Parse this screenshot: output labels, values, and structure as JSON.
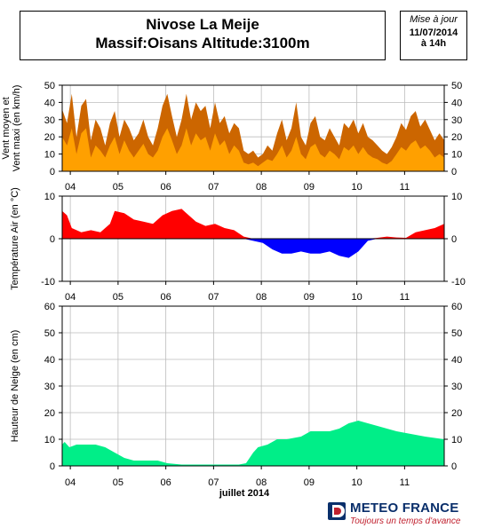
{
  "header": {
    "title_line1": "Nivose La Meije",
    "title_line2": "Massif:Oisans Altitude:3100m"
  },
  "update": {
    "label": "Mise à jour",
    "date": "11/07/2014",
    "time": "à 14h"
  },
  "brand": {
    "name": "METEO FRANCE",
    "slogan": "Toujours un temps d'avance"
  },
  "colors": {
    "wind_max": "#cc6600",
    "wind_mean": "#ffa000",
    "temp_positive": "#ff0000",
    "temp_negative": "#0000ff",
    "snow": "#00ee88",
    "brand_blue": "#0a2f6b",
    "brand_red": "#c0202e"
  },
  "chart_data": [
    {
      "type": "area",
      "name": "wind",
      "ylabel": [
        "Vent moyen et",
        "Vent maxi (en km/h)"
      ],
      "ylim": [
        0,
        50
      ],
      "yticks": [
        0,
        10,
        20,
        30,
        40,
        50
      ],
      "grid": true,
      "x_unit": "days since 2014-07-03 14h",
      "x_range": [
        0,
        8
      ],
      "day_ticks": [
        {
          "label": "04",
          "x": 0.17
        },
        {
          "label": "05",
          "x": 1.17
        },
        {
          "label": "06",
          "x": 2.17
        },
        {
          "label": "07",
          "x": 3.17
        },
        {
          "label": "08",
          "x": 4.17
        },
        {
          "label": "09",
          "x": 5.17
        },
        {
          "label": "10",
          "x": 6.17
        },
        {
          "label": "11",
          "x": 7.17
        }
      ],
      "series": [
        {
          "name": "Vent maxi",
          "x": [
            0,
            0.1,
            0.2,
            0.3,
            0.4,
            0.5,
            0.6,
            0.7,
            0.8,
            0.9,
            1.0,
            1.1,
            1.2,
            1.3,
            1.4,
            1.5,
            1.6,
            1.7,
            1.8,
            1.9,
            2.0,
            2.1,
            2.2,
            2.3,
            2.4,
            2.5,
            2.6,
            2.7,
            2.8,
            2.9,
            3.0,
            3.1,
            3.2,
            3.3,
            3.4,
            3.5,
            3.6,
            3.7,
            3.8,
            3.9,
            4.0,
            4.1,
            4.2,
            4.3,
            4.4,
            4.5,
            4.6,
            4.7,
            4.8,
            4.9,
            5.0,
            5.1,
            5.2,
            5.3,
            5.4,
            5.5,
            5.6,
            5.7,
            5.8,
            5.9,
            6.0,
            6.1,
            6.2,
            6.3,
            6.4,
            6.5,
            6.6,
            6.7,
            6.8,
            6.9,
            7.0,
            7.1,
            7.2,
            7.3,
            7.4,
            7.5,
            7.6,
            7.7,
            7.8,
            7.9,
            8.0
          ],
          "values": [
            36,
            28,
            45,
            20,
            38,
            42,
            18,
            30,
            25,
            15,
            28,
            35,
            20,
            30,
            25,
            18,
            22,
            30,
            20,
            15,
            25,
            38,
            45,
            32,
            20,
            30,
            45,
            30,
            40,
            35,
            38,
            25,
            40,
            28,
            32,
            22,
            28,
            25,
            12,
            10,
            12,
            8,
            10,
            15,
            12,
            22,
            30,
            18,
            25,
            40,
            20,
            15,
            28,
            32,
            20,
            18,
            25,
            20,
            15,
            28,
            25,
            30,
            22,
            28,
            20,
            18,
            15,
            12,
            10,
            14,
            20,
            28,
            24,
            32,
            35,
            26,
            30,
            24,
            18,
            22,
            18
          ]
        },
        {
          "name": "Vent moyen",
          "x": [
            0,
            0.1,
            0.2,
            0.3,
            0.4,
            0.5,
            0.6,
            0.7,
            0.8,
            0.9,
            1.0,
            1.1,
            1.2,
            1.3,
            1.4,
            1.5,
            1.6,
            1.7,
            1.8,
            1.9,
            2.0,
            2.1,
            2.2,
            2.3,
            2.4,
            2.5,
            2.6,
            2.7,
            2.8,
            2.9,
            3.0,
            3.1,
            3.2,
            3.3,
            3.4,
            3.5,
            3.6,
            3.7,
            3.8,
            3.9,
            4.0,
            4.1,
            4.2,
            4.3,
            4.4,
            4.5,
            4.6,
            4.7,
            4.8,
            4.9,
            5.0,
            5.1,
            5.2,
            5.3,
            5.4,
            5.5,
            5.6,
            5.7,
            5.8,
            5.9,
            6.0,
            6.1,
            6.2,
            6.3,
            6.4,
            6.5,
            6.6,
            6.7,
            6.8,
            6.9,
            7.0,
            7.1,
            7.2,
            7.3,
            7.4,
            7.5,
            7.6,
            7.7,
            7.8,
            7.9,
            8.0
          ],
          "values": [
            20,
            15,
            25,
            10,
            22,
            25,
            8,
            15,
            12,
            8,
            15,
            20,
            10,
            18,
            12,
            8,
            12,
            16,
            10,
            8,
            12,
            20,
            25,
            18,
            10,
            15,
            25,
            15,
            22,
            18,
            20,
            12,
            22,
            15,
            18,
            10,
            15,
            12,
            5,
            4,
            5,
            3,
            5,
            7,
            6,
            10,
            15,
            8,
            12,
            20,
            10,
            7,
            14,
            16,
            10,
            8,
            12,
            10,
            7,
            14,
            12,
            15,
            10,
            14,
            10,
            8,
            7,
            5,
            4,
            6,
            10,
            14,
            12,
            16,
            18,
            13,
            15,
            12,
            8,
            10,
            8
          ]
        }
      ]
    },
    {
      "type": "area",
      "name": "temperature",
      "ylabel": [
        "Température Air (en °C)"
      ],
      "ylim": [
        -10,
        10
      ],
      "yticks": [
        -10,
        0,
        10
      ],
      "grid": true,
      "x_unit": "days since 2014-07-03 14h",
      "x_range": [
        0,
        8
      ],
      "day_ticks": [
        {
          "label": "04",
          "x": 0.17
        },
        {
          "label": "05",
          "x": 1.17
        },
        {
          "label": "06",
          "x": 2.17
        },
        {
          "label": "07",
          "x": 3.17
        },
        {
          "label": "08",
          "x": 4.17
        },
        {
          "label": "09",
          "x": 5.17
        },
        {
          "label": "10",
          "x": 6.17
        },
        {
          "label": "11",
          "x": 7.17
        }
      ],
      "series": [
        {
          "name": "Température Air",
          "x": [
            0,
            0.1,
            0.2,
            0.4,
            0.6,
            0.8,
            1.0,
            1.1,
            1.3,
            1.5,
            1.7,
            1.9,
            2.1,
            2.3,
            2.5,
            2.6,
            2.8,
            3.0,
            3.2,
            3.4,
            3.6,
            3.8,
            4.0,
            4.2,
            4.4,
            4.6,
            4.8,
            5.0,
            5.2,
            5.4,
            5.6,
            5.8,
            6.0,
            6.2,
            6.4,
            6.6,
            6.8,
            7.0,
            7.2,
            7.4,
            7.6,
            7.8,
            8.0
          ],
          "values": [
            6.5,
            5.5,
            2.5,
            1.5,
            2.0,
            1.5,
            3.5,
            6.5,
            6.0,
            4.5,
            4.0,
            3.5,
            5.5,
            6.5,
            7.0,
            6.0,
            4.0,
            3.0,
            3.5,
            2.5,
            2.0,
            0.5,
            -0.5,
            -1.0,
            -2.5,
            -3.5,
            -3.5,
            -3.0,
            -3.5,
            -3.5,
            -3.0,
            -4.0,
            -4.5,
            -3.0,
            -0.5,
            0.2,
            0.5,
            0.3,
            0.2,
            1.5,
            2.0,
            2.5,
            3.5
          ]
        }
      ]
    },
    {
      "type": "area",
      "name": "snow",
      "ylabel": [
        "Hauteur de Neige (en cm)"
      ],
      "xlabel": "juillet 2014",
      "ylim": [
        0,
        60
      ],
      "yticks": [
        0,
        10,
        20,
        30,
        40,
        50,
        60
      ],
      "grid": true,
      "x_unit": "days since 2014-07-03 14h",
      "x_range": [
        0,
        8
      ],
      "day_ticks": [
        {
          "label": "04",
          "x": 0.17
        },
        {
          "label": "05",
          "x": 1.17
        },
        {
          "label": "06",
          "x": 2.17
        },
        {
          "label": "07",
          "x": 3.17
        },
        {
          "label": "08",
          "x": 4.17
        },
        {
          "label": "09",
          "x": 5.17
        },
        {
          "label": "10",
          "x": 6.17
        },
        {
          "label": "11",
          "x": 7.17
        }
      ],
      "series": [
        {
          "name": "Hauteur de Neige",
          "x": [
            0,
            0.05,
            0.15,
            0.3,
            0.7,
            0.9,
            1.1,
            1.3,
            1.5,
            2.0,
            2.2,
            2.5,
            3.0,
            3.5,
            3.7,
            3.85,
            4.0,
            4.1,
            4.3,
            4.5,
            4.7,
            5.0,
            5.2,
            5.4,
            5.6,
            5.8,
            6.0,
            6.2,
            6.4,
            6.6,
            6.8,
            7.0,
            7.3,
            7.6,
            8.0
          ],
          "values": [
            8,
            9,
            7,
            8,
            8,
            7,
            5,
            3,
            2,
            2,
            1,
            0.5,
            0.5,
            0.5,
            0.5,
            1,
            5,
            7,
            8,
            10,
            10,
            11,
            13,
            13,
            13,
            14,
            16,
            17,
            16,
            15,
            14,
            13,
            12,
            11,
            10
          ]
        }
      ]
    }
  ]
}
